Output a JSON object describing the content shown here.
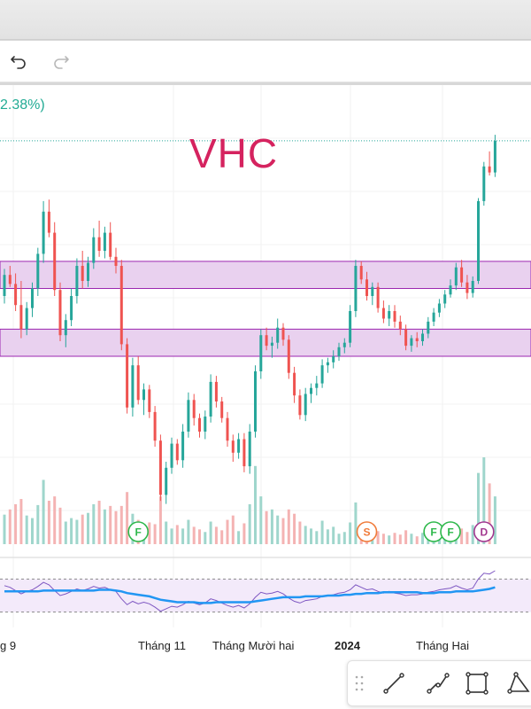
{
  "header": {
    "undo_icon": "undo-icon",
    "redo_icon": "redo-icon"
  },
  "chart_header": {
    "change_text": "2.38%)",
    "ticker": "VHC"
  },
  "colors": {
    "up": "#26a69a",
    "down": "#ef5350",
    "up_volume": "#9fd6cc",
    "down_volume": "#f4b3b3",
    "zone_fill": "#e9d1ef",
    "zone_border": "#9c27b0",
    "rsi_line": "#7e57c2",
    "rsi_ma": "#2196f3",
    "ticker": "#d5235f"
  },
  "chart_data": [
    {
      "type": "candlestick",
      "symbol": "VHC",
      "x_labels": [
        "g 9",
        "Tháng 11",
        "Tháng Mười hai",
        "2024",
        "Tháng Hai"
      ],
      "price_zones": [
        {
          "from": 76.5,
          "to": 78.3
        },
        {
          "from": 72.0,
          "to": 73.8
        }
      ],
      "last_price_line": 86.3,
      "candles": [
        [
          76.0,
          77.8,
          75.5,
          77.4
        ],
        [
          77.4,
          78.0,
          76.6,
          76.8
        ],
        [
          76.8,
          77.5,
          75.0,
          75.4
        ],
        [
          75.4,
          77.0,
          73.2,
          73.8
        ],
        [
          73.8,
          75.6,
          73.4,
          75.2
        ],
        [
          75.2,
          76.9,
          74.6,
          76.5
        ],
        [
          76.5,
          79.2,
          76.0,
          78.8
        ],
        [
          78.8,
          82.3,
          78.2,
          81.6
        ],
        [
          81.6,
          82.4,
          79.9,
          80.2
        ],
        [
          80.2,
          80.9,
          76.0,
          76.4
        ],
        [
          76.4,
          76.9,
          73.0,
          73.4
        ],
        [
          73.4,
          74.8,
          72.6,
          74.4
        ],
        [
          74.4,
          76.5,
          74.0,
          76.0
        ],
        [
          76.0,
          78.5,
          75.5,
          78.0
        ],
        [
          78.0,
          79.0,
          76.5,
          77.0
        ],
        [
          77.0,
          78.6,
          76.6,
          78.2
        ],
        [
          78.2,
          80.5,
          77.8,
          79.9
        ],
        [
          79.9,
          81.0,
          78.6,
          79.0
        ],
        [
          79.0,
          80.6,
          78.5,
          80.2
        ],
        [
          80.2,
          80.9,
          78.4,
          78.6
        ],
        [
          78.6,
          79.2,
          77.5,
          78.0
        ],
        [
          78.0,
          78.4,
          72.4,
          72.8
        ],
        [
          72.8,
          73.2,
          68.2,
          68.6
        ],
        [
          68.6,
          71.9,
          68.0,
          71.4
        ],
        [
          71.4,
          72.0,
          68.8,
          69.1
        ],
        [
          69.1,
          70.2,
          68.1,
          69.8
        ],
        [
          69.8,
          70.1,
          67.9,
          68.3
        ],
        [
          68.3,
          68.7,
          66.0,
          66.4
        ],
        [
          66.4,
          66.8,
          62.4,
          62.8
        ],
        [
          62.8,
          65.0,
          62.2,
          64.6
        ],
        [
          64.6,
          66.6,
          64.2,
          66.2
        ],
        [
          66.2,
          66.5,
          64.8,
          65.1
        ],
        [
          65.1,
          67.5,
          64.6,
          67.0
        ],
        [
          67.0,
          69.6,
          66.6,
          69.1
        ],
        [
          69.1,
          69.5,
          67.4,
          67.9
        ],
        [
          67.9,
          68.2,
          66.6,
          67.0
        ],
        [
          67.0,
          68.4,
          66.5,
          68.0
        ],
        [
          68.0,
          70.8,
          67.6,
          70.3
        ],
        [
          70.3,
          70.7,
          68.6,
          69.0
        ],
        [
          69.0,
          69.3,
          67.6,
          67.9
        ],
        [
          67.9,
          68.3,
          66.0,
          66.4
        ],
        [
          66.4,
          66.8,
          65.0,
          65.6
        ],
        [
          65.6,
          66.9,
          65.2,
          66.5
        ],
        [
          66.5,
          66.9,
          64.3,
          64.7
        ],
        [
          64.7,
          67.5,
          64.2,
          67.0
        ],
        [
          67.0,
          71.4,
          66.6,
          71.0
        ],
        [
          71.0,
          73.8,
          70.5,
          73.4
        ],
        [
          73.4,
          73.9,
          72.4,
          72.7
        ],
        [
          72.7,
          73.3,
          71.9,
          72.9
        ],
        [
          72.9,
          74.5,
          72.5,
          73.9
        ],
        [
          73.9,
          74.2,
          72.7,
          73.1
        ],
        [
          73.1,
          73.4,
          70.5,
          70.9
        ],
        [
          70.9,
          71.3,
          68.9,
          69.4
        ],
        [
          69.4,
          69.8,
          67.8,
          68.1
        ],
        [
          68.1,
          69.9,
          67.7,
          69.5
        ],
        [
          69.5,
          70.2,
          68.9,
          69.9
        ],
        [
          69.9,
          70.7,
          69.4,
          70.2
        ],
        [
          70.2,
          71.8,
          69.9,
          71.4
        ],
        [
          71.4,
          71.9,
          70.9,
          71.6
        ],
        [
          71.6,
          72.4,
          71.2,
          72.0
        ],
        [
          72.0,
          72.9,
          71.7,
          72.6
        ],
        [
          72.6,
          73.2,
          72.2,
          72.9
        ],
        [
          72.9,
          75.4,
          72.6,
          75.0
        ],
        [
          75.0,
          78.4,
          74.6,
          78.0
        ],
        [
          78.0,
          78.3,
          76.8,
          77.1
        ],
        [
          77.1,
          77.6,
          75.7,
          76.0
        ],
        [
          76.0,
          76.9,
          75.4,
          76.6
        ],
        [
          76.6,
          76.9,
          74.9,
          75.2
        ],
        [
          75.2,
          75.7,
          74.2,
          74.5
        ],
        [
          74.5,
          75.4,
          74.0,
          75.0
        ],
        [
          75.0,
          75.4,
          73.9,
          74.3
        ],
        [
          74.3,
          74.7,
          73.4,
          73.8
        ],
        [
          73.8,
          74.1,
          72.4,
          72.7
        ],
        [
          72.7,
          73.4,
          72.3,
          73.2
        ],
        [
          73.2,
          73.6,
          72.6,
          73.0
        ],
        [
          73.0,
          73.8,
          72.7,
          73.5
        ],
        [
          73.5,
          74.6,
          73.2,
          74.3
        ],
        [
          74.3,
          75.2,
          74.0,
          74.9
        ],
        [
          74.9,
          75.8,
          74.6,
          75.5
        ],
        [
          75.5,
          76.4,
          75.2,
          76.1
        ],
        [
          76.1,
          77.1,
          75.9,
          76.7
        ],
        [
          76.7,
          78.2,
          76.4,
          77.9
        ],
        [
          77.9,
          78.4,
          76.6,
          76.9
        ],
        [
          76.9,
          77.4,
          75.8,
          76.2
        ],
        [
          76.2,
          77.3,
          75.9,
          77.0
        ],
        [
          77.0,
          82.5,
          76.8,
          82.3
        ],
        [
          82.3,
          84.9,
          82.0,
          84.6
        ],
        [
          84.6,
          85.6,
          84.0,
          84.2
        ],
        [
          84.2,
          86.7,
          83.9,
          86.3
        ]
      ],
      "volume": [
        [
          0.34,
          "up"
        ],
        [
          0.4,
          "down"
        ],
        [
          0.46,
          "down"
        ],
        [
          0.52,
          "down"
        ],
        [
          0.33,
          "up"
        ],
        [
          0.3,
          "up"
        ],
        [
          0.45,
          "up"
        ],
        [
          0.74,
          "up"
        ],
        [
          0.5,
          "down"
        ],
        [
          0.55,
          "down"
        ],
        [
          0.42,
          "down"
        ],
        [
          0.26,
          "up"
        ],
        [
          0.3,
          "up"
        ],
        [
          0.28,
          "up"
        ],
        [
          0.34,
          "down"
        ],
        [
          0.36,
          "up"
        ],
        [
          0.46,
          "up"
        ],
        [
          0.5,
          "down"
        ],
        [
          0.4,
          "up"
        ],
        [
          0.44,
          "down"
        ],
        [
          0.38,
          "down"
        ],
        [
          0.44,
          "down"
        ],
        [
          0.6,
          "down"
        ],
        [
          0.35,
          "up"
        ],
        [
          0.28,
          "down"
        ],
        [
          0.2,
          "up"
        ],
        [
          0.25,
          "down"
        ],
        [
          0.23,
          "down"
        ],
        [
          0.55,
          "down"
        ],
        [
          0.26,
          "up"
        ],
        [
          0.18,
          "up"
        ],
        [
          0.22,
          "down"
        ],
        [
          0.18,
          "up"
        ],
        [
          0.28,
          "up"
        ],
        [
          0.2,
          "down"
        ],
        [
          0.17,
          "down"
        ],
        [
          0.14,
          "up"
        ],
        [
          0.26,
          "up"
        ],
        [
          0.2,
          "down"
        ],
        [
          0.16,
          "down"
        ],
        [
          0.28,
          "down"
        ],
        [
          0.33,
          "down"
        ],
        [
          0.15,
          "up"
        ],
        [
          0.24,
          "down"
        ],
        [
          0.46,
          "up"
        ],
        [
          0.9,
          "up"
        ],
        [
          0.55,
          "up"
        ],
        [
          0.38,
          "down"
        ],
        [
          0.4,
          "up"
        ],
        [
          0.33,
          "up"
        ],
        [
          0.3,
          "down"
        ],
        [
          0.4,
          "down"
        ],
        [
          0.35,
          "down"
        ],
        [
          0.26,
          "down"
        ],
        [
          0.21,
          "up"
        ],
        [
          0.18,
          "up"
        ],
        [
          0.15,
          "up"
        ],
        [
          0.27,
          "up"
        ],
        [
          0.17,
          "up"
        ],
        [
          0.2,
          "up"
        ],
        [
          0.12,
          "up"
        ],
        [
          0.14,
          "up"
        ],
        [
          0.25,
          "up"
        ],
        [
          0.48,
          "up"
        ],
        [
          0.2,
          "down"
        ],
        [
          0.17,
          "down"
        ],
        [
          0.13,
          "up"
        ],
        [
          0.15,
          "down"
        ],
        [
          0.12,
          "down"
        ],
        [
          0.1,
          "up"
        ],
        [
          0.13,
          "down"
        ],
        [
          0.11,
          "down"
        ],
        [
          0.16,
          "down"
        ],
        [
          0.12,
          "up"
        ],
        [
          0.09,
          "down"
        ],
        [
          0.13,
          "up"
        ],
        [
          0.15,
          "up"
        ],
        [
          0.12,
          "up"
        ],
        [
          0.14,
          "up"
        ],
        [
          0.16,
          "up"
        ],
        [
          0.13,
          "up"
        ],
        [
          0.24,
          "up"
        ],
        [
          0.18,
          "down"
        ],
        [
          0.14,
          "down"
        ],
        [
          0.22,
          "up"
        ],
        [
          0.82,
          "up"
        ],
        [
          1.0,
          "up"
        ],
        [
          0.7,
          "down"
        ],
        [
          0.55,
          "up"
        ]
      ],
      "events": [
        {
          "label": "F",
          "index": 24,
          "color": "#2eb84b"
        },
        {
          "label": "S",
          "index": 65,
          "color": "#f07b3a"
        },
        {
          "label": "F",
          "index": 77,
          "color": "#2eb84b"
        },
        {
          "label": "F",
          "index": 80,
          "color": "#2eb84b"
        },
        {
          "label": "D",
          "index": 86,
          "color": "#a2378f"
        }
      ],
      "rsi": {
        "upper": 70,
        "lower": 30,
        "values": [
          62,
          60,
          56,
          52,
          55,
          57,
          61,
          66,
          63,
          56,
          50,
          52,
          55,
          58,
          56,
          58,
          61,
          59,
          60,
          57,
          55,
          46,
          39,
          43,
          40,
          42,
          40,
          36,
          31,
          34,
          37,
          36,
          39,
          43,
          41,
          39,
          41,
          46,
          44,
          41,
          38,
          36,
          38,
          35,
          40,
          48,
          54,
          52,
          53,
          55,
          52,
          47,
          43,
          41,
          44,
          45,
          46,
          49,
          50,
          51,
          53,
          54,
          57,
          63,
          60,
          57,
          58,
          55,
          53,
          55,
          53,
          52,
          50,
          51,
          51,
          52,
          54,
          55,
          57,
          58,
          59,
          62,
          59,
          57,
          59,
          70,
          77,
          76,
          80
        ],
        "ma": [
          55,
          55,
          55,
          55,
          55,
          55,
          55,
          56,
          56,
          56,
          56,
          56,
          56,
          56,
          56,
          56,
          56,
          57,
          57,
          57,
          56,
          55,
          53,
          52,
          51,
          50,
          49,
          47,
          45,
          44,
          43,
          42,
          42,
          42,
          42,
          41,
          41,
          41,
          42,
          42,
          42,
          42,
          42,
          42,
          42,
          43,
          44,
          45,
          46,
          47,
          48,
          48,
          48,
          48,
          49,
          49,
          49,
          49,
          50,
          50,
          50,
          51,
          51,
          52,
          52,
          53,
          53,
          53,
          54,
          54,
          54,
          54,
          54,
          54,
          54,
          53,
          53,
          53,
          54,
          54,
          54,
          55,
          55,
          55,
          55,
          56,
          57,
          58,
          60
        ]
      }
    }
  ],
  "drawing_tools": [
    "drag-handle-icon",
    "trend-line-icon",
    "multi-point-line-icon",
    "rectangle-icon",
    "triangle-icon"
  ]
}
